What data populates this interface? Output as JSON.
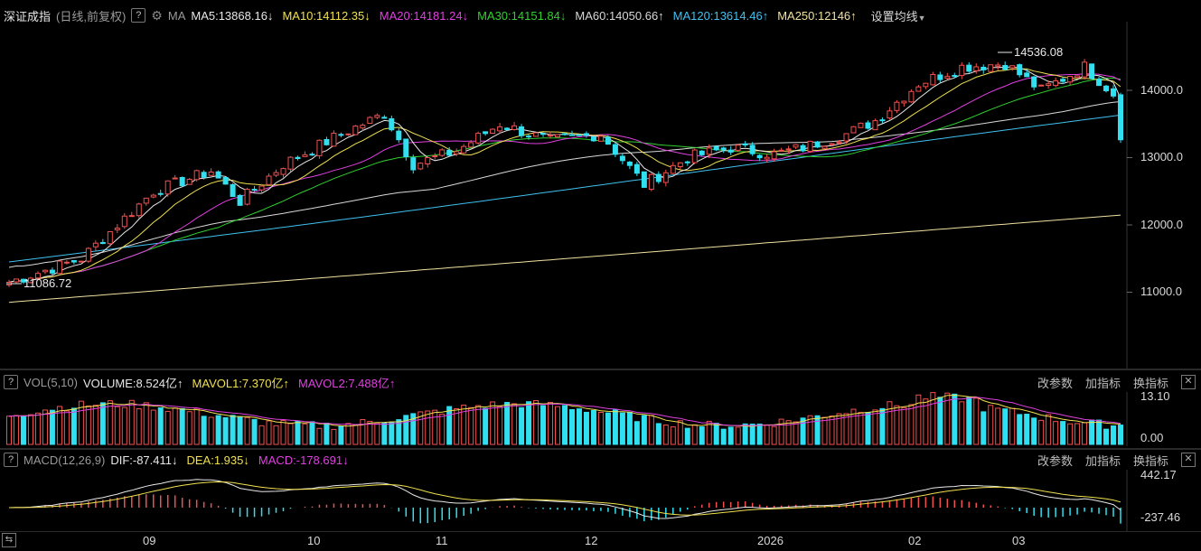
{
  "main_header": {
    "help": "?",
    "title": "深证成指",
    "subtitle": "(日线,前复权)",
    "ma_label": "MA",
    "indicators": [
      {
        "text": "MA5:13868.16",
        "arrow": "↓",
        "color": "#e8e8e8"
      },
      {
        "text": "MA10:14112.35",
        "arrow": "↓",
        "color": "#f0e050"
      },
      {
        "text": "MA20:14181.24",
        "arrow": "↓",
        "color": "#e040e0"
      },
      {
        "text": "MA30:14151.84",
        "arrow": "↓",
        "color": "#30d030"
      },
      {
        "text": "MA60:14050.66",
        "arrow": "↑",
        "color": "#d8d8d8"
      },
      {
        "text": "MA120:13614.46",
        "arrow": "↑",
        "color": "#40c0f0"
      },
      {
        "text": "MA250:12146",
        "arrow": "↑",
        "color": "#f0e0a0"
      }
    ],
    "settings_label": "设置均线"
  },
  "price_annotations": {
    "high": "14536.08",
    "low": "11086.72"
  },
  "price_axis": [
    "14000.0",
    "13000.0",
    "12000.0",
    "11000.0"
  ],
  "vol_header": {
    "help": "?",
    "name": "VOL(5,10)",
    "items": [
      {
        "text": "VOLUME:8.524亿",
        "arrow": "↑",
        "color": "#e8e8e8"
      },
      {
        "text": "MAVOL1:7.370亿",
        "arrow": "↑",
        "color": "#f0e050"
      },
      {
        "text": "MAVOL2:7.488亿",
        "arrow": "↑",
        "color": "#e040e0"
      }
    ]
  },
  "vol_axis": [
    "13.10",
    "0.00"
  ],
  "macd_header": {
    "help": "?",
    "name": "MACD(12,26,9)",
    "items": [
      {
        "text": "DIF:-87.411",
        "arrow": "↓",
        "color": "#e8e8e8"
      },
      {
        "text": "DEA:1.935",
        "arrow": "↓",
        "color": "#f0e050"
      },
      {
        "text": "MACD:-178.691",
        "arrow": "↓",
        "color": "#e040e0"
      }
    ]
  },
  "macd_axis": [
    "442.17",
    "-237.46"
  ],
  "panel_tools": {
    "modify": "改参数",
    "add": "加指标",
    "switch": "换指标",
    "close": "✕"
  },
  "time_axis": [
    "09",
    "10",
    "11",
    "12",
    "2026",
    "02",
    "03"
  ],
  "colors": {
    "up": "#f05050",
    "down": "#30e0f0",
    "background": "#000000"
  },
  "chart_data": {
    "type": "candlestick",
    "note": "Shenzhen Component Index daily candles with MA, volume and MACD",
    "ylim": [
      10000,
      14700
    ],
    "high_label": 14536.08,
    "low_label": 11086.72,
    "volume_ylim": [
      0,
      13.1
    ],
    "macd_ylim": [
      -237.46,
      442.17
    ]
  }
}
